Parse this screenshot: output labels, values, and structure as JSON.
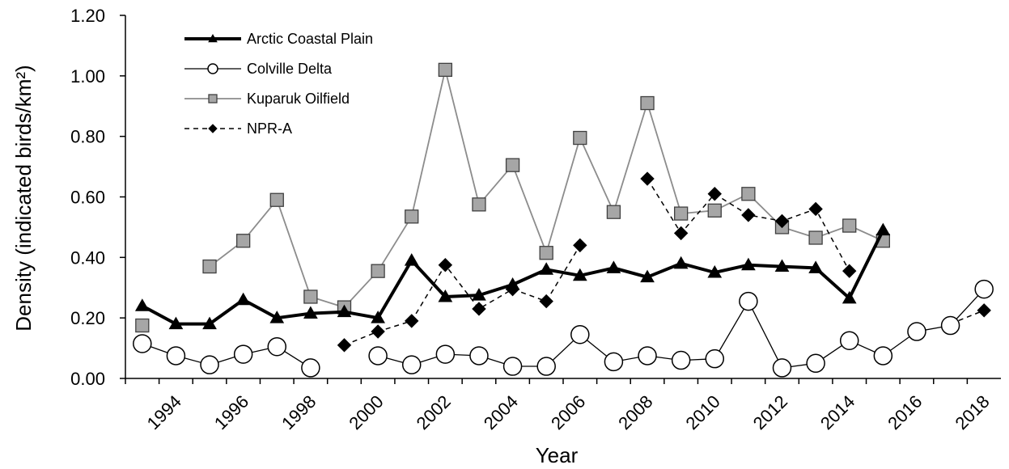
{
  "chart_data": {
    "type": "line",
    "title": "",
    "xlabel": "Year",
    "ylabel": "Density (indicated birds/km²)",
    "ylim": [
      0,
      1.2
    ],
    "yticks": [
      "0.00",
      "0.20",
      "0.40",
      "0.60",
      "0.80",
      "1.00",
      "1.20"
    ],
    "xlim": [
      1992.5,
      2018.5
    ],
    "xticks": [
      "1994",
      "1996",
      "1998",
      "2000",
      "2002",
      "2004",
      "2006",
      "2008",
      "2010",
      "2012",
      "2014",
      "2016",
      "2018"
    ],
    "grid": false,
    "legend_position": "top-left",
    "series": [
      {
        "name": "Arctic Coastal Plain",
        "style": "thick-black-triangle",
        "points": [
          [
            1993,
            0.24
          ],
          [
            1994,
            0.18
          ],
          [
            1995,
            0.18
          ],
          [
            1996,
            0.26
          ],
          [
            1997,
            0.2
          ],
          [
            1998,
            0.215
          ],
          [
            1999,
            0.22
          ],
          [
            2000,
            0.2
          ],
          [
            2001,
            0.39
          ],
          [
            2002,
            0.27
          ],
          [
            2003,
            0.275
          ],
          [
            2004,
            0.31
          ],
          [
            2005,
            0.36
          ],
          [
            2006,
            0.34
          ],
          [
            2007,
            0.365
          ],
          [
            2008,
            0.335
          ],
          [
            2009,
            0.38
          ],
          [
            2010,
            0.35
          ],
          [
            2011,
            0.375
          ],
          [
            2012,
            0.37
          ],
          [
            2013,
            0.365
          ],
          [
            2014,
            0.265
          ],
          [
            2015,
            0.49
          ]
        ]
      },
      {
        "name": "Colville Delta",
        "style": "black-open-circle",
        "points": [
          [
            1993,
            0.115
          ],
          [
            1994,
            0.075
          ],
          [
            1995,
            0.045
          ],
          [
            1996,
            0.08
          ],
          [
            1997,
            0.105
          ],
          [
            1998,
            0.035
          ],
          null,
          [
            2000,
            0.075
          ],
          [
            2001,
            0.045
          ],
          [
            2002,
            0.08
          ],
          [
            2003,
            0.075
          ],
          [
            2004,
            0.04
          ],
          [
            2005,
            0.04
          ],
          [
            2006,
            0.145
          ],
          [
            2007,
            0.055
          ],
          [
            2008,
            0.075
          ],
          [
            2009,
            0.06
          ],
          [
            2010,
            0.065
          ],
          [
            2011,
            0.255
          ],
          [
            2012,
            0.035
          ],
          [
            2013,
            0.05
          ],
          [
            2014,
            0.125
          ],
          [
            2015,
            0.075
          ],
          [
            2016,
            0.155
          ],
          [
            2017,
            0.175
          ],
          [
            2018,
            0.295
          ]
        ]
      },
      {
        "name": "Kuparuk Oilfield",
        "style": "gray-square",
        "points": [
          [
            1993,
            0.175
          ],
          null,
          [
            1995,
            0.37
          ],
          [
            1996,
            0.455
          ],
          [
            1997,
            0.59
          ],
          [
            1998,
            0.27
          ],
          [
            1999,
            0.235
          ],
          [
            2000,
            0.355
          ],
          [
            2001,
            0.535
          ],
          [
            2002,
            1.02
          ],
          [
            2003,
            0.575
          ],
          [
            2004,
            0.705
          ],
          [
            2005,
            0.415
          ],
          [
            2006,
            0.795
          ],
          [
            2007,
            0.55
          ],
          [
            2008,
            0.91
          ],
          [
            2009,
            0.545
          ],
          [
            2010,
            0.555
          ],
          [
            2011,
            0.61
          ],
          [
            2012,
            0.5
          ],
          [
            2013,
            0.465
          ],
          [
            2014,
            0.505
          ],
          [
            2015,
            0.455
          ]
        ]
      },
      {
        "name": "NPR-A",
        "style": "dashed-black-diamond",
        "points": [
          [
            1999,
            0.11
          ],
          [
            2000,
            0.155
          ],
          [
            2001,
            0.19
          ],
          [
            2002,
            0.375
          ],
          [
            2003,
            0.23
          ],
          [
            2004,
            0.295
          ],
          [
            2005,
            0.255
          ],
          [
            2006,
            0.44
          ],
          null,
          [
            2008,
            0.66
          ],
          [
            2009,
            0.48
          ],
          [
            2010,
            0.61
          ],
          [
            2011,
            0.54
          ],
          [
            2012,
            0.52
          ],
          [
            2013,
            0.56
          ],
          [
            2014,
            0.355
          ],
          null,
          null,
          [
            2017,
            0.18
          ],
          [
            2018,
            0.225
          ]
        ]
      }
    ]
  }
}
